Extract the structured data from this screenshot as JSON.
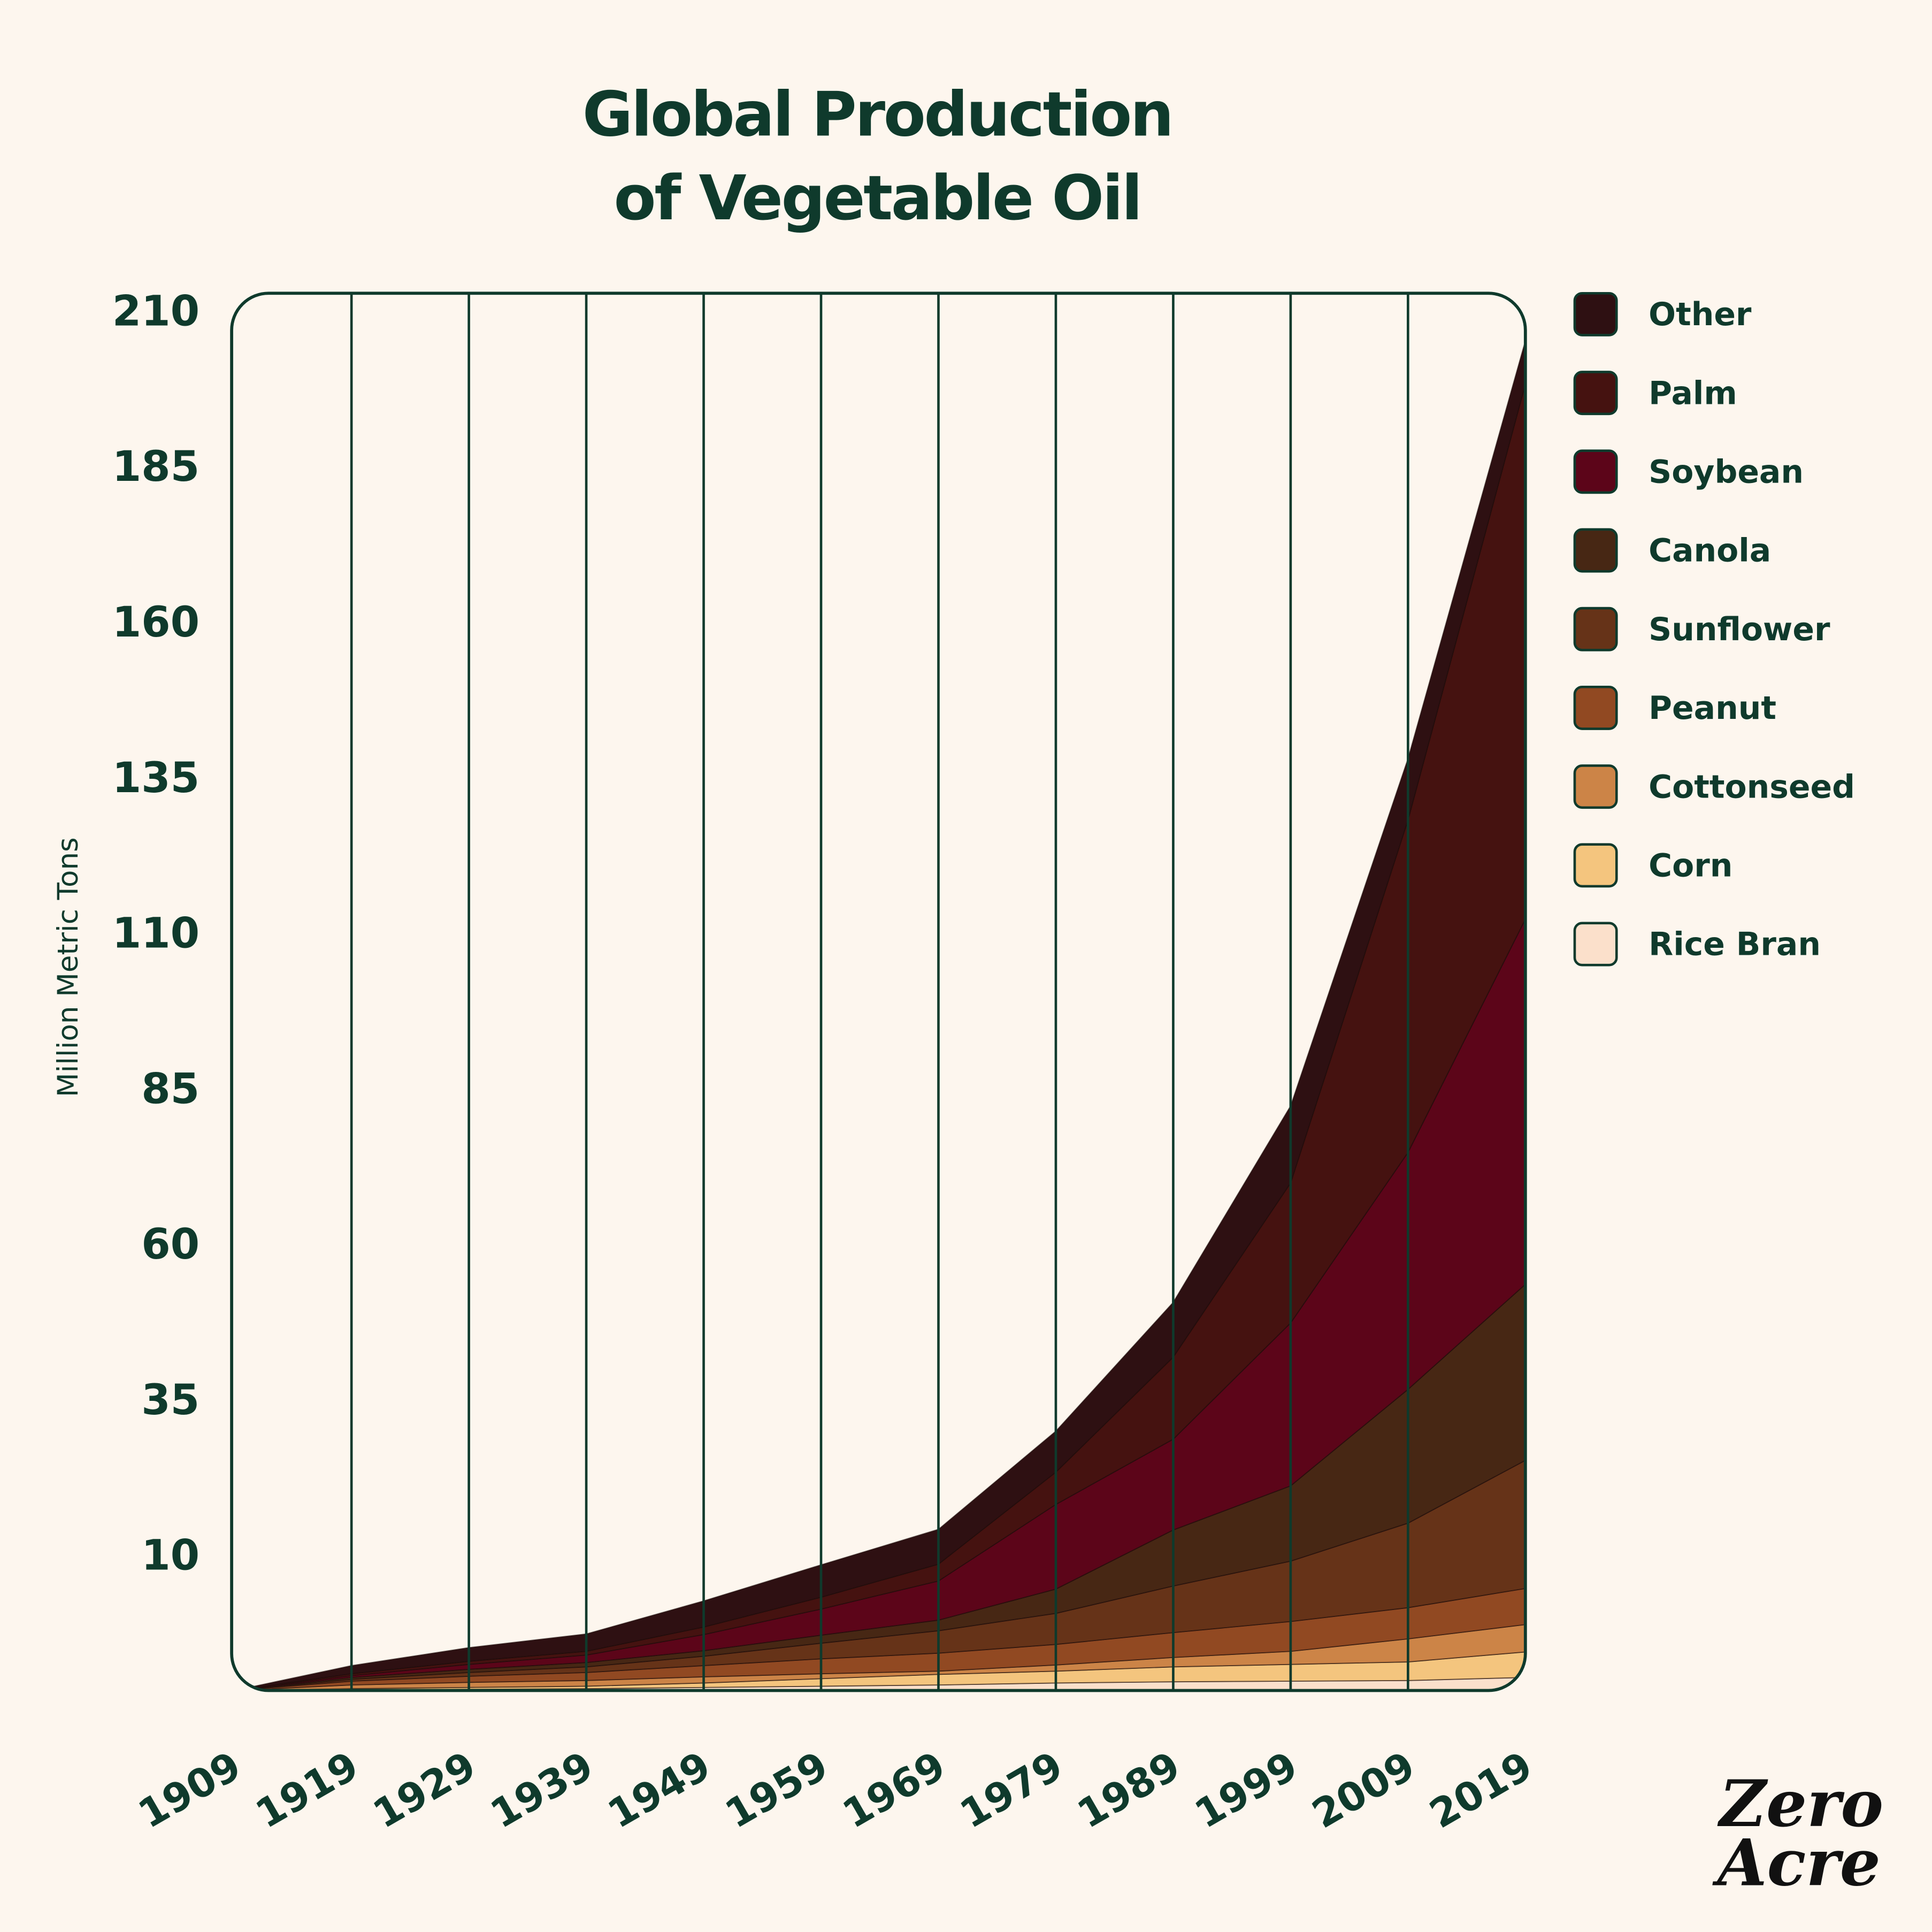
{
  "chart_data": {
    "type": "area",
    "stacked": true,
    "title": "Global Production of Vegetable Oil",
    "title_lines": [
      "Global Production",
      "of Vegetable Oil"
    ],
    "ylabel": "Million Metric Tons",
    "xlabel": "",
    "x": [
      1909,
      1919,
      1929,
      1939,
      1949,
      1959,
      1969,
      1979,
      1989,
      1999,
      2009,
      2019
    ],
    "x_tick_labels": [
      "1909",
      "1919",
      "1929",
      "1939",
      "1949",
      "1959",
      "1969",
      "1979",
      "1989",
      "1999",
      "2009",
      "2019"
    ],
    "y_tick_labels": [
      "210",
      "185",
      "160",
      "135",
      "110",
      "85",
      "60",
      "35",
      "10"
    ],
    "y_ticks": [
      210,
      185,
      160,
      135,
      110,
      85,
      60,
      35,
      10
    ],
    "ylim": [
      -11.8,
      212.8
    ],
    "grid": "vertical",
    "legend_position": "right",
    "series": [
      {
        "name": "Rice Bran",
        "color": "#fbe0cb",
        "values": [
          0,
          0.1,
          0.2,
          0.3,
          0.5,
          0.7,
          0.9,
          1.2,
          1.4,
          1.5,
          1.6,
          2.1
        ]
      },
      {
        "name": "Corn",
        "color": "#f4c57e",
        "values": [
          0,
          0.2,
          0.3,
          0.4,
          0.7,
          1.2,
          1.7,
          1.9,
          2.4,
          2.7,
          3.0,
          4.1
        ]
      },
      {
        "name": "Cottonseed",
        "color": "#cc8447",
        "values": [
          0,
          0.6,
          0.8,
          0.9,
          1.0,
          0.8,
          0.5,
          1.0,
          1.5,
          2.1,
          3.7,
          4.4
        ]
      },
      {
        "name": "Peanut",
        "color": "#914922",
        "values": [
          0,
          0.6,
          1.0,
          1.3,
          1.8,
          2.4,
          2.9,
          3.3,
          4.0,
          4.8,
          5.0,
          5.8
        ]
      },
      {
        "name": "Sunflower",
        "color": "#663318",
        "values": [
          0,
          0.3,
          0.6,
          0.9,
          1.5,
          2.5,
          3.6,
          5.0,
          7.5,
          9.7,
          13.6,
          20.6
        ]
      },
      {
        "name": "Canola",
        "color": "#472714",
        "values": [
          0,
          0.3,
          0.5,
          0.7,
          0.9,
          1.3,
          1.7,
          3.9,
          9.0,
          12.1,
          21.5,
          28.3
        ]
      },
      {
        "name": "Soybean",
        "color": "#5c0519",
        "values": [
          0,
          0.3,
          0.8,
          1.2,
          2.6,
          4.2,
          6.3,
          13.6,
          14.6,
          26.2,
          38.1,
          58.7
        ]
      },
      {
        "name": "Palm",
        "color": "#451210",
        "values": [
          0,
          0.3,
          0.5,
          0.6,
          1.2,
          1.9,
          2.7,
          5.2,
          13.2,
          22.5,
          53.4,
          86.0
        ]
      },
      {
        "name": "Other",
        "color": "#2e1012",
        "values": [
          0,
          1.3,
          2.2,
          2.8,
          4.2,
          5.2,
          5.6,
          6.6,
          8.8,
          12.4,
          9.9,
          7.0
        ]
      }
    ],
    "legend_order": [
      "Other",
      "Palm",
      "Soybean",
      "Canola",
      "Sunflower",
      "Peanut",
      "Cottonseed",
      "Corn",
      "Rice Bran"
    ]
  },
  "colors": {
    "background": "#fdf6ee",
    "ink": "#0f3a2c"
  },
  "logo": {
    "line1": "Zero",
    "line2": "Acre"
  }
}
